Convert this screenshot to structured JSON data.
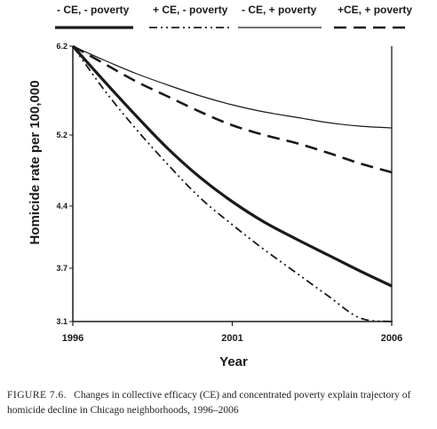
{
  "chart_data": {
    "type": "line",
    "xlabel": "Year",
    "ylabel": "Homicide rate per 100,000",
    "x": [
      1996,
      1997,
      1998,
      1999,
      2000,
      2001,
      2002,
      2003,
      2004,
      2005,
      2006
    ],
    "x_ticks": [
      {
        "value": 1996,
        "label": "1996"
      },
      {
        "value": 2001,
        "label": "2001"
      },
      {
        "value": 2006,
        "label": "2006"
      }
    ],
    "y_ticks": [
      {
        "value": 6.2,
        "label": "6.2"
      },
      {
        "value": 5.2,
        "label": "5.2"
      },
      {
        "value": 4.4,
        "label": "4.4"
      },
      {
        "value": 3.7,
        "label": "3.7"
      },
      {
        "value": 3.1,
        "label": "3.1"
      }
    ],
    "xlim": [
      1996,
      2006
    ],
    "ylim": [
      3.1,
      6.2
    ],
    "grid": false,
    "legend_position": "top",
    "series": [
      {
        "name": "- CE, - poverty",
        "style": "thick-solid",
        "values": [
          6.2,
          5.8,
          5.41,
          5.04,
          4.72,
          4.45,
          4.22,
          4.03,
          3.85,
          3.67,
          3.5
        ]
      },
      {
        "name": "+ CE, - poverty",
        "style": "dash-dot-dot",
        "values": [
          6.2,
          5.7,
          5.26,
          4.86,
          4.49,
          4.19,
          3.91,
          3.65,
          3.39,
          3.14,
          3.1
        ]
      },
      {
        "name": "- CE, + poverty",
        "style": "thin-solid",
        "values": [
          6.2,
          6.04,
          5.89,
          5.76,
          5.64,
          5.54,
          5.46,
          5.4,
          5.34,
          5.3,
          5.28
        ]
      },
      {
        "name": "+CE, + poverty",
        "style": "dashed",
        "values": [
          6.2,
          6.0,
          5.8,
          5.63,
          5.46,
          5.31,
          5.2,
          5.11,
          5.0,
          4.88,
          4.78
        ]
      }
    ]
  },
  "caption": {
    "figure_label": "FIGURE 7.6.",
    "text": "Changes in collective efficacy (CE) and concentrated poverty explain trajectory of homicide decline in Chicago neighborhoods, 1996–2006"
  }
}
